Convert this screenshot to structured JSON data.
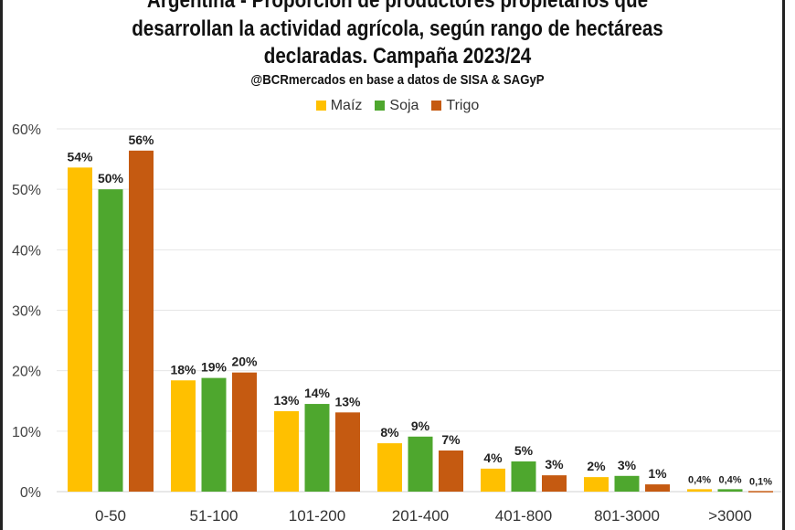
{
  "chart_data": {
    "type": "bar",
    "title_lines": [
      "Argentina - Proporción de productores propietarios que",
      "desarrollan la actividad agrícola, según rango de hectáreas",
      "declaradas. Campaña 2023/24"
    ],
    "subtitle": "@BCRmercados  en base a datos de SISA & SAGyP",
    "categories": [
      "0-50",
      "51-100",
      "101-200",
      "201-400",
      "401-800",
      "801-3000",
      ">3000"
    ],
    "series": [
      {
        "name": "Maíz",
        "color": "#FFC000",
        "values": [
          53.6,
          18.4,
          13.3,
          8.0,
          3.8,
          2.4,
          0.4
        ],
        "labels": [
          "54%",
          "18%",
          "13%",
          "8%",
          "4%",
          "2%",
          "0,4%"
        ]
      },
      {
        "name": "Soja",
        "color": "#4EA72E",
        "values": [
          50.0,
          18.8,
          14.5,
          9.1,
          5.0,
          2.6,
          0.4
        ],
        "labels": [
          "50%",
          "19%",
          "14%",
          "9%",
          "5%",
          "3%",
          "0,4%"
        ]
      },
      {
        "name": "Trigo",
        "color": "#C55A11",
        "values": [
          56.4,
          19.7,
          13.1,
          6.8,
          2.7,
          1.2,
          0.1
        ],
        "labels": [
          "56%",
          "20%",
          "13%",
          "7%",
          "3%",
          "1%",
          "0,1%"
        ]
      }
    ],
    "yticks": [
      "0%",
      "10%",
      "20%",
      "30%",
      "40%",
      "50%",
      "60%"
    ],
    "ylim": [
      0,
      60
    ],
    "grid": true,
    "legend": "top"
  }
}
